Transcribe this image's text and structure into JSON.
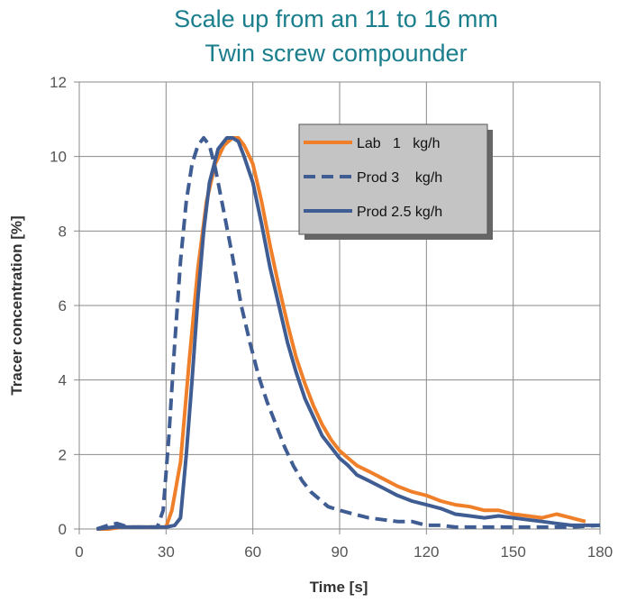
{
  "chart_data": {
    "type": "line",
    "title_lines": [
      "Scale up from an 11 to 16 mm",
      "Twin screw compounder"
    ],
    "xlabel": "Time [s]",
    "ylabel": "Tracer concentration [%]",
    "xlim": [
      0,
      180
    ],
    "ylim": [
      0,
      12
    ],
    "x_ticks": [
      0,
      30,
      60,
      90,
      120,
      150,
      180
    ],
    "y_ticks": [
      0,
      2,
      4,
      6,
      8,
      10,
      12
    ],
    "x_tick_labels": [
      "0",
      "30",
      "60",
      "90",
      "120",
      "150",
      "180"
    ],
    "y_tick_labels": [
      "0",
      "2",
      "4",
      "6",
      "8",
      "10",
      "12"
    ],
    "grid": "major gridlines on both axes",
    "legend_position": "top-right",
    "series": [
      {
        "name": "Lab   1   kg/h",
        "color": "#f07f2a",
        "dash": "solid",
        "points": [
          [
            6,
            0
          ],
          [
            10,
            0
          ],
          [
            15,
            0.05
          ],
          [
            20,
            0.05
          ],
          [
            25,
            0.05
          ],
          [
            30,
            0.05
          ],
          [
            32,
            0.5
          ],
          [
            35,
            1.8
          ],
          [
            38,
            4.5
          ],
          [
            41,
            7
          ],
          [
            44,
            8.8
          ],
          [
            47,
            9.8
          ],
          [
            50,
            10.3
          ],
          [
            53,
            10.5
          ],
          [
            55,
            10.5
          ],
          [
            57,
            10.3
          ],
          [
            60,
            9.8
          ],
          [
            63,
            8.8
          ],
          [
            66,
            7.6
          ],
          [
            69,
            6.5
          ],
          [
            72,
            5.5
          ],
          [
            75,
            4.6
          ],
          [
            78,
            3.9
          ],
          [
            81,
            3.3
          ],
          [
            84,
            2.8
          ],
          [
            87,
            2.4
          ],
          [
            90,
            2.1
          ],
          [
            93,
            1.9
          ],
          [
            96,
            1.7
          ],
          [
            100,
            1.55
          ],
          [
            105,
            1.35
          ],
          [
            110,
            1.15
          ],
          [
            115,
            1.0
          ],
          [
            120,
            0.9
          ],
          [
            125,
            0.75
          ],
          [
            130,
            0.65
          ],
          [
            135,
            0.6
          ],
          [
            140,
            0.5
          ],
          [
            145,
            0.5
          ],
          [
            150,
            0.4
          ],
          [
            155,
            0.35
          ],
          [
            160,
            0.3
          ],
          [
            165,
            0.4
          ],
          [
            170,
            0.3
          ],
          [
            175,
            0.2
          ]
        ]
      },
      {
        "name": "Prod 3    kg/h",
        "color": "#3f5d93",
        "dash": "dashed",
        "points": [
          [
            6,
            0
          ],
          [
            10,
            0.1
          ],
          [
            13,
            0.15
          ],
          [
            17,
            0.05
          ],
          [
            22,
            0.05
          ],
          [
            27,
            0.05
          ],
          [
            29,
            0.5
          ],
          [
            31,
            2.5
          ],
          [
            33,
            5
          ],
          [
            35,
            7.2
          ],
          [
            37,
            8.8
          ],
          [
            39,
            9.8
          ],
          [
            41,
            10.3
          ],
          [
            43,
            10.5
          ],
          [
            45,
            10.3
          ],
          [
            47,
            9.7
          ],
          [
            50,
            8.5
          ],
          [
            53,
            7.3
          ],
          [
            56,
            6.0
          ],
          [
            59,
            5.0
          ],
          [
            62,
            4.1
          ],
          [
            65,
            3.4
          ],
          [
            68,
            2.8
          ],
          [
            71,
            2.2
          ],
          [
            74,
            1.7
          ],
          [
            77,
            1.3
          ],
          [
            80,
            1.0
          ],
          [
            83,
            0.8
          ],
          [
            86,
            0.6
          ],
          [
            90,
            0.5
          ],
          [
            95,
            0.4
          ],
          [
            100,
            0.3
          ],
          [
            105,
            0.25
          ],
          [
            110,
            0.2
          ],
          [
            115,
            0.2
          ],
          [
            120,
            0.1
          ],
          [
            125,
            0.1
          ],
          [
            130,
            0.05
          ],
          [
            140,
            0.05
          ],
          [
            150,
            0.05
          ],
          [
            160,
            0.05
          ],
          [
            170,
            0.05
          ],
          [
            180,
            0.1
          ]
        ]
      },
      {
        "name": "Prod 2.5 kg/h",
        "color": "#3f5d93",
        "dash": "solid",
        "points": [
          [
            6,
            0
          ],
          [
            12,
            0.05
          ],
          [
            18,
            0.05
          ],
          [
            24,
            0.05
          ],
          [
            30,
            0.05
          ],
          [
            33,
            0.1
          ],
          [
            35,
            0.3
          ],
          [
            37,
            2
          ],
          [
            39,
            4
          ],
          [
            41,
            6.2
          ],
          [
            43,
            8
          ],
          [
            45,
            9.3
          ],
          [
            48,
            10.2
          ],
          [
            51,
            10.5
          ],
          [
            53,
            10.5
          ],
          [
            55,
            10.4
          ],
          [
            57,
            10.0
          ],
          [
            60,
            9.3
          ],
          [
            63,
            8.2
          ],
          [
            66,
            7.0
          ],
          [
            69,
            6.0
          ],
          [
            72,
            5.0
          ],
          [
            75,
            4.2
          ],
          [
            78,
            3.5
          ],
          [
            81,
            3.0
          ],
          [
            84,
            2.5
          ],
          [
            87,
            2.2
          ],
          [
            90,
            1.9
          ],
          [
            93,
            1.7
          ],
          [
            96,
            1.45
          ],
          [
            100,
            1.3
          ],
          [
            105,
            1.1
          ],
          [
            110,
            0.9
          ],
          [
            115,
            0.75
          ],
          [
            120,
            0.65
          ],
          [
            125,
            0.55
          ],
          [
            130,
            0.4
          ],
          [
            135,
            0.35
          ],
          [
            140,
            0.3
          ],
          [
            145,
            0.35
          ],
          [
            150,
            0.3
          ],
          [
            155,
            0.25
          ],
          [
            160,
            0.2
          ],
          [
            165,
            0.15
          ],
          [
            170,
            0.1
          ],
          [
            175,
            0.1
          ],
          [
            180,
            0.1
          ]
        ]
      }
    ]
  }
}
